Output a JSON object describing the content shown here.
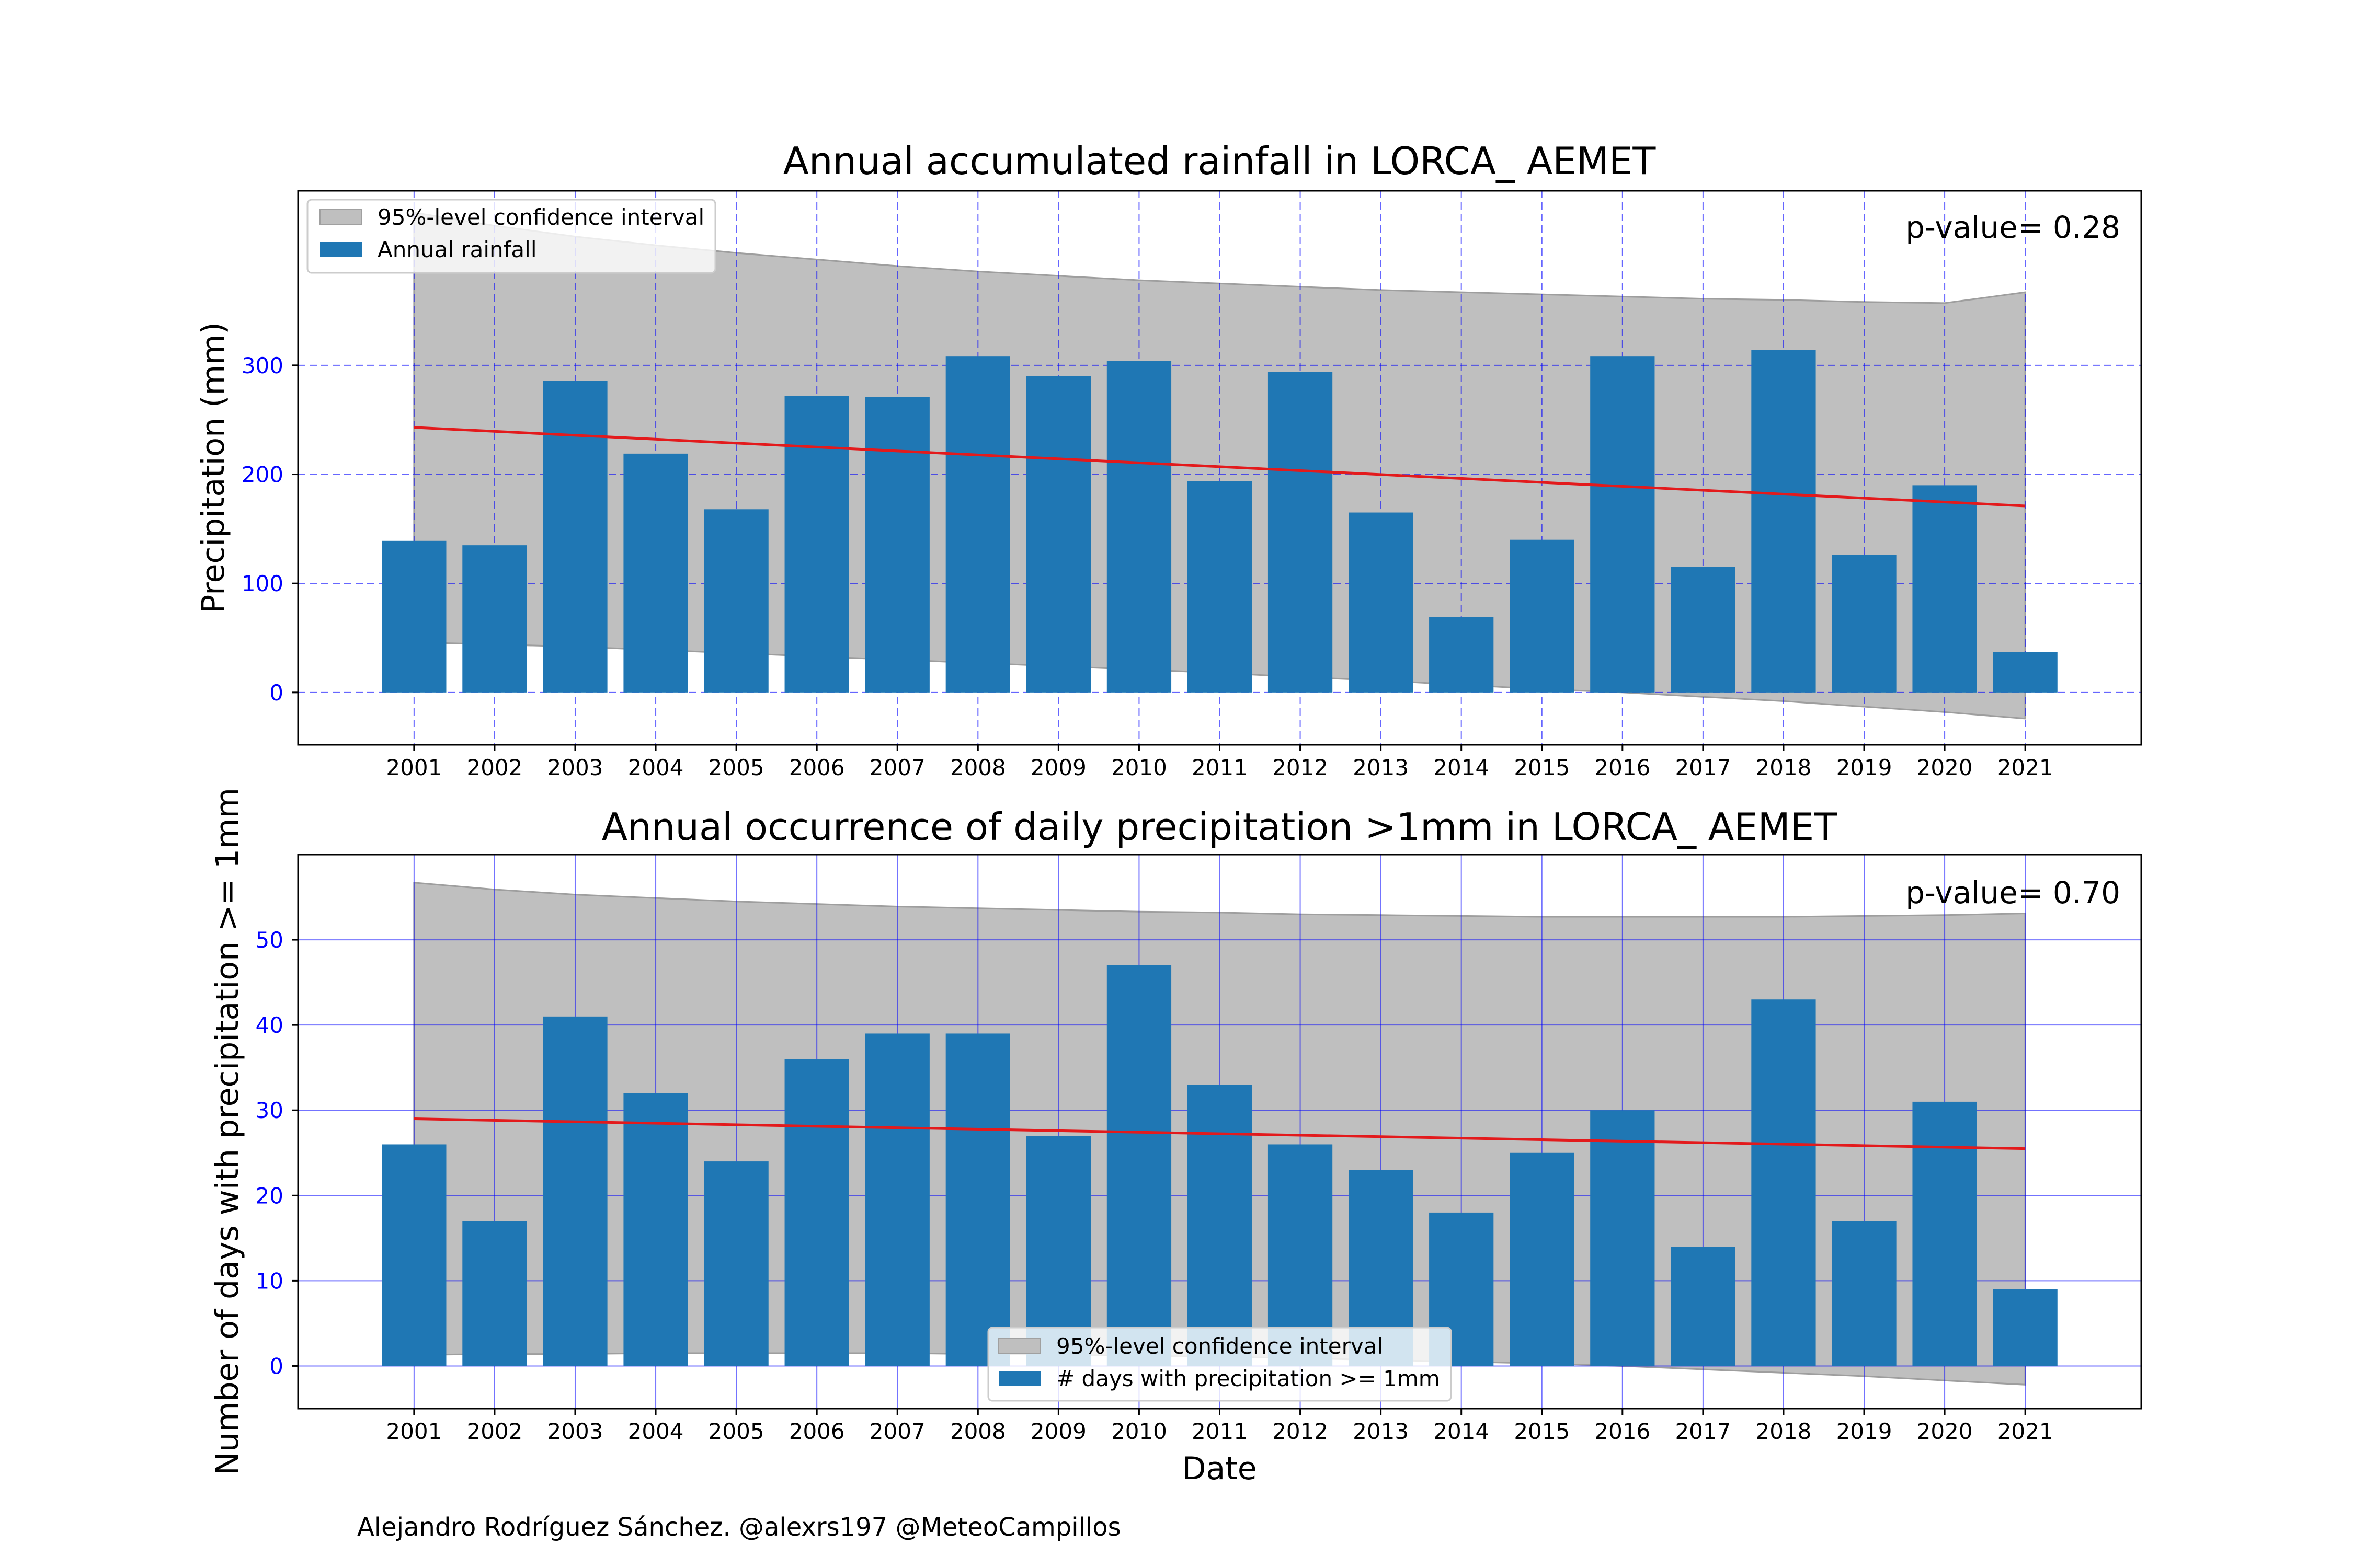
{
  "colors": {
    "bar": "#1f77b4",
    "confidence_band": "#bfbfbf",
    "trend_line": "#e31a1c",
    "grid": "#0000ff",
    "tick_y": "#0000ff"
  },
  "footer": {
    "credit": "Alejandro Rodríguez Sánchez. @alexrs197 @MeteoCampillos"
  },
  "chart_data": [
    {
      "type": "bar",
      "title": "Annual accumulated rainfall in LORCA_ AEMET",
      "xlabel": "",
      "ylabel": "Precipitation (mm)",
      "annotation": "p-value= 0.28",
      "categories": [
        "2001",
        "2002",
        "2003",
        "2004",
        "2005",
        "2006",
        "2007",
        "2008",
        "2009",
        "2010",
        "2011",
        "2012",
        "2013",
        "2014",
        "2015",
        "2016",
        "2017",
        "2018",
        "2019",
        "2020",
        "2021"
      ],
      "series": [
        {
          "name": "Annual rainfall",
          "values": [
            139,
            135,
            286,
            219,
            168,
            272,
            271,
            308,
            290,
            304,
            194,
            294,
            165,
            69,
            140,
            308,
            115,
            314,
            126,
            190,
            37
          ]
        }
      ],
      "trend": {
        "start": 243,
        "end": 171
      },
      "confidence_interval": {
        "name": "95%-level confidence interval",
        "upper": [
          440,
          428,
          418,
          410,
          403,
          397,
          391,
          386,
          382,
          378,
          375,
          372,
          369,
          367,
          365,
          363,
          361,
          360,
          358,
          357,
          367
        ],
        "lower": [
          46,
          44,
          42,
          39,
          36,
          33,
          30,
          27,
          24,
          21,
          18,
          14,
          11,
          7,
          3,
          0,
          -4,
          -8,
          -13,
          -18,
          -24
        ]
      },
      "yticks": [
        0,
        100,
        200,
        300
      ],
      "ylim": [
        -48,
        460
      ],
      "grid": true,
      "grid_style": "dashed",
      "legend_position": "top-left",
      "legend": [
        "95%-level confidence interval",
        "Annual rainfall"
      ]
    },
    {
      "type": "bar",
      "title": "Annual occurrence of daily precipitation >1mm in LORCA_ AEMET",
      "xlabel": "Date",
      "ylabel": "Number of days with precipitation >= 1mm",
      "annotation": "p-value= 0.70",
      "categories": [
        "2001",
        "2002",
        "2003",
        "2004",
        "2005",
        "2006",
        "2007",
        "2008",
        "2009",
        "2010",
        "2011",
        "2012",
        "2013",
        "2014",
        "2015",
        "2016",
        "2017",
        "2018",
        "2019",
        "2020",
        "2021"
      ],
      "series": [
        {
          "name": "# days with precipitation >= 1mm",
          "values": [
            26,
            17,
            41,
            32,
            24,
            36,
            39,
            39,
            27,
            47,
            33,
            26,
            23,
            18,
            25,
            30,
            14,
            43,
            17,
            31,
            9
          ]
        }
      ],
      "trend": {
        "start": 29,
        "end": 25.5
      },
      "confidence_interval": {
        "name": "95%-level confidence interval",
        "upper": [
          56.7,
          55.9,
          55.3,
          54.9,
          54.5,
          54.2,
          53.9,
          53.7,
          53.5,
          53.3,
          53.2,
          53.0,
          52.9,
          52.8,
          52.7,
          52.7,
          52.7,
          52.7,
          52.8,
          52.9,
          53.1
        ],
        "lower": [
          1.3,
          1.4,
          1.4,
          1.5,
          1.5,
          1.5,
          1.5,
          1.4,
          1.3,
          1.2,
          1.1,
          0.9,
          0.7,
          0.5,
          0.3,
          0.0,
          -0.4,
          -0.8,
          -1.2,
          -1.7,
          -2.2
        ]
      },
      "yticks": [
        0,
        10,
        20,
        30,
        40,
        50
      ],
      "ylim": [
        -5,
        60
      ],
      "grid": true,
      "grid_style": "solid",
      "legend_position": "bottom-center",
      "legend": [
        "95%-level confidence interval",
        "# days with precipitation >= 1mm"
      ]
    }
  ]
}
